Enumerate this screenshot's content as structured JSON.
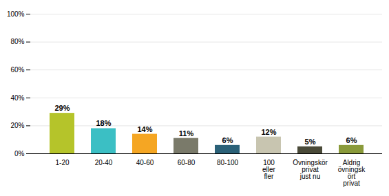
{
  "chart_data": {
    "type": "bar",
    "categories": [
      "1-20",
      "20-40",
      "40-60",
      "60-80",
      "80-100",
      "100\neller\nfler",
      "Övningskör\nprivat\njust nu",
      "Aldrig\növningsk\nört\nprivat"
    ],
    "values": [
      29,
      18,
      14,
      11,
      6,
      12,
      5,
      6
    ],
    "value_labels": [
      "29%",
      "18%",
      "14%",
      "11%",
      "6%",
      "12%",
      "5%",
      "6%"
    ],
    "colors": [
      "#b5c42a",
      "#3bbfc4",
      "#f5a623",
      "#7a7a6a",
      "#2b6178",
      "#c8c5b0",
      "#4a4a38",
      "#8a9a3a"
    ],
    "data_labels": true,
    "ylim": [
      0,
      100
    ],
    "yticks": [
      {
        "value": 0,
        "label": "0%"
      },
      {
        "value": 20,
        "label": "20%"
      },
      {
        "value": 40,
        "label": "40%"
      },
      {
        "value": 60,
        "label": "60%"
      },
      {
        "value": 80,
        "label": "80%"
      },
      {
        "value": 100,
        "label": "100%"
      }
    ],
    "grid": true
  }
}
